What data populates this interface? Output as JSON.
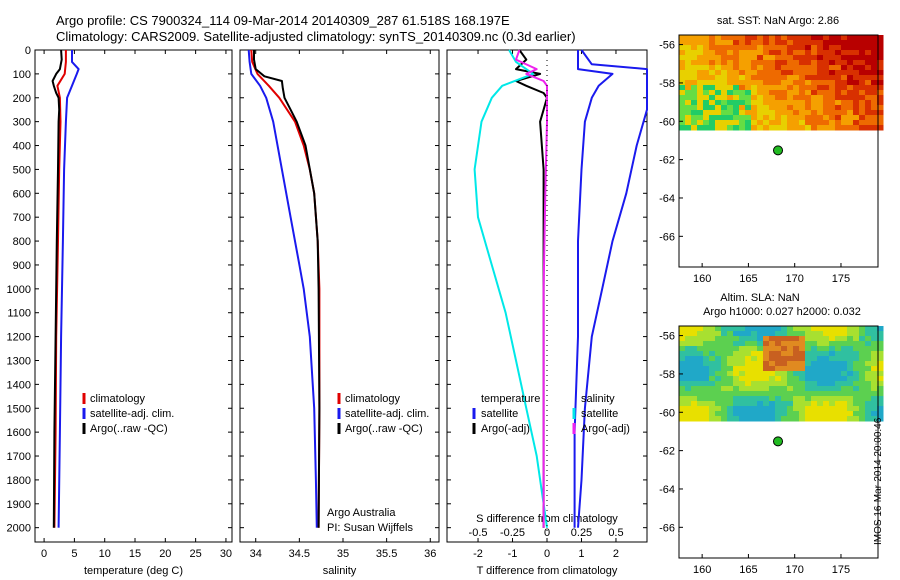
{
  "header": {
    "line1": "Argo profile: CS 7900324_114 09-Mar-2014 20140309_287 61.518S 168.197E",
    "line2": "Climatology: CARS2009. Satellite-adjusted climatology: synTS_20140309.nc (0.3d earlier)"
  },
  "side_text": "IMOS 16-Mar-2014 20:00:46",
  "colors": {
    "climatology": "#e00000",
    "satellite": "#1a1aee",
    "argo": "#000000",
    "cyan": "#00e8e8",
    "magenta": "#ee22ee",
    "marker": "#22bb22"
  },
  "chart_data": [
    {
      "id": "temperature",
      "type": "line",
      "xlabel": "temperature (deg C)",
      "ylabel": "",
      "xlim": [
        -1.5,
        31
      ],
      "ylim": [
        2060,
        0
      ],
      "xticks": [
        0,
        5,
        10,
        15,
        20,
        25,
        30
      ],
      "yticks": [
        0,
        100,
        200,
        300,
        400,
        500,
        600,
        700,
        800,
        900,
        1000,
        1100,
        1200,
        1300,
        1400,
        1500,
        1600,
        1700,
        1800,
        1900,
        2000
      ],
      "legend": {
        "position": "lower-middle",
        "entries": [
          "climatology",
          "satellite-adj. clim.",
          "Argo(..raw -QC)"
        ]
      },
      "series": [
        {
          "name": "climatology",
          "color": "#e00000",
          "y": [
            0,
            50,
            100,
            150,
            200,
            300,
            500,
            800,
            1200,
            1600,
            2000
          ],
          "x": [
            3.6,
            3.6,
            3.4,
            2.2,
            2.6,
            2.7,
            2.5,
            2.3,
            2.0,
            1.9,
            1.7
          ]
        },
        {
          "name": "satellite-adj. clim.",
          "color": "#1a1aee",
          "y": [
            0,
            50,
            80,
            100,
            150,
            200,
            300,
            500,
            800,
            1200,
            1600,
            2000
          ],
          "x": [
            4.6,
            4.6,
            5.7,
            5.4,
            4.6,
            3.8,
            3.6,
            3.3,
            3.1,
            2.8,
            2.6,
            2.4
          ]
        },
        {
          "name": "Argo(..raw -QC)",
          "color": "#000000",
          "y": [
            0,
            40,
            80,
            100,
            130,
            150,
            180,
            200,
            250,
            300,
            500,
            800,
            1200,
            1600,
            2000
          ],
          "x": [
            2.8,
            2.9,
            2.6,
            2.0,
            1.4,
            1.6,
            2.0,
            2.4,
            2.5,
            2.4,
            2.3,
            2.1,
            1.9,
            1.7,
            1.6
          ]
        }
      ]
    },
    {
      "id": "salinity",
      "type": "line",
      "xlabel": "salinity",
      "ylabel": "",
      "xlim": [
        33.82,
        36.1
      ],
      "ylim": [
        2060,
        0
      ],
      "xticks": [
        34,
        34.5,
        35,
        35.5,
        36
      ],
      "legend": {
        "position": "lower-middle",
        "entries": [
          "climatology",
          "satellite-adj. clim.",
          "Argo(..raw -QC)"
        ]
      },
      "annotations": [
        "Argo Australia",
        "PI: Susan Wijffels"
      ],
      "series": [
        {
          "name": "climatology",
          "color": "#e00000",
          "y": [
            0,
            50,
            100,
            150,
            200,
            300,
            400,
            500,
            600,
            800,
            1000,
            1500,
            2000
          ],
          "x": [
            33.95,
            33.96,
            34.02,
            34.15,
            34.27,
            34.45,
            34.55,
            34.62,
            34.67,
            34.71,
            34.73,
            34.73,
            34.72
          ]
        },
        {
          "name": "satellite-adj. clim.",
          "color": "#1a1aee",
          "y": [
            0,
            50,
            100,
            150,
            200,
            300,
            500,
            700,
            900,
            1000,
            1200,
            1500,
            1800,
            2000
          ],
          "x": [
            33.92,
            33.93,
            33.95,
            34.05,
            34.12,
            34.2,
            34.3,
            34.4,
            34.5,
            34.55,
            34.62,
            34.67,
            34.69,
            34.7
          ]
        },
        {
          "name": "Argo(..raw -QC)",
          "color": "#000000",
          "y": [
            0,
            40,
            80,
            110,
            130,
            160,
            200,
            250,
            300,
            400,
            600,
            800,
            1000,
            1500,
            2000
          ],
          "x": [
            33.98,
            33.98,
            34.0,
            34.1,
            34.3,
            34.31,
            34.33,
            34.4,
            34.47,
            34.57,
            34.67,
            34.71,
            34.72,
            34.73,
            34.72
          ]
        }
      ]
    },
    {
      "id": "difference",
      "type": "line",
      "xlabel": "T difference from climatology",
      "x2label": "S difference from climatology",
      "ylabel": "",
      "xlim": [
        -2.9,
        2.9
      ],
      "ylim": [
        2060,
        0
      ],
      "xticks": [
        -2,
        -1,
        0,
        1,
        2
      ],
      "x2ticks": [
        "-0.5",
        "-0.25",
        "0",
        "0.25",
        "0.5"
      ],
      "x2tick_values": [
        -2,
        -1,
        0,
        1,
        2
      ],
      "legend": {
        "position": "lower-middle",
        "left_entries": [
          "temperature",
          "satellite",
          "Argo(-adj)"
        ],
        "right_entries": [
          "salinity",
          "satellite",
          "Argo(-adj)"
        ]
      },
      "series": [
        {
          "name": "temperature satellite",
          "color": "#1a1aee",
          "y": [
            0,
            80,
            100,
            150,
            200,
            300,
            500,
            800,
            1200,
            1600,
            2000
          ],
          "x": [
            0.9,
            0.9,
            1.9,
            1.5,
            1.3,
            1.1,
            1.0,
            0.9,
            0.9,
            0.8,
            0.8
          ]
        },
        {
          "name": "temperature Argo(-adj)",
          "color": "#000000",
          "y": [
            0,
            40,
            80,
            100,
            130,
            150,
            180,
            200,
            250,
            300,
            500,
            800,
            1200,
            1600,
            2000
          ],
          "x": [
            -0.8,
            -0.6,
            -0.9,
            -0.2,
            -0.9,
            -0.6,
            -0.1,
            0.0,
            -0.1,
            -0.2,
            -0.1,
            -0.1,
            -0.1,
            -0.1,
            -0.1
          ]
        },
        {
          "name": "salinity satellite",
          "color": "#1a1aee",
          "y": [
            0,
            60,
            80,
            120,
            250,
            400,
            600,
            800,
            1000,
            1200,
            1500,
            1800,
            2000
          ],
          "x": [
            1.0,
            1.3,
            2.9,
            2.9,
            2.9,
            2.6,
            2.3,
            1.9,
            1.6,
            1.3,
            1.1,
            1.0,
            0.9
          ]
        },
        {
          "name": "salinity satellite (cyan)",
          "color": "#00e8e8",
          "y": [
            0,
            50,
            100,
            150,
            200,
            300,
            500,
            700,
            900,
            1100,
            1300,
            1500,
            1700,
            1900,
            2000
          ],
          "x": [
            -1.1,
            -0.9,
            -0.4,
            -1.3,
            -1.6,
            -1.9,
            -2.1,
            -2.0,
            -1.6,
            -1.2,
            -0.9,
            -0.6,
            -0.3,
            -0.1,
            0.0
          ]
        },
        {
          "name": "salinity Argo(-adj)",
          "color": "#ee22ee",
          "y": [
            0,
            40,
            80,
            100,
            130,
            150,
            200,
            300,
            600,
            1000,
            1500,
            2000
          ],
          "x": [
            -0.8,
            -0.9,
            -0.3,
            -0.6,
            -0.1,
            0.0,
            0.0,
            0.0,
            -0.05,
            -0.1,
            -0.1,
            -0.1
          ]
        }
      ]
    },
    {
      "id": "sst_map",
      "type": "heatmap",
      "title": "sat. SST: NaN Argo: 2.86",
      "xlim": [
        157.5,
        179
      ],
      "ylim": [
        -67.6,
        -55.5
      ],
      "xticks": [
        160,
        165,
        170,
        175
      ],
      "yticks": [
        -56,
        -58,
        -60,
        -62,
        -64,
        -66
      ],
      "marker": {
        "lon": 168.197,
        "lat": -61.518
      }
    },
    {
      "id": "sla_map",
      "type": "heatmap",
      "title": "Altim. SLA: NaN",
      "subtitle": "Argo h1000: 0.027 h2000: 0.032",
      "xlim": [
        157.5,
        179
      ],
      "ylim": [
        -67.6,
        -55.5
      ],
      "xticks": [
        160,
        165,
        170,
        175
      ],
      "yticks": [
        -56,
        -58,
        -60,
        -62,
        -64,
        -66
      ],
      "marker": {
        "lon": 168.197,
        "lat": -61.518
      }
    }
  ]
}
